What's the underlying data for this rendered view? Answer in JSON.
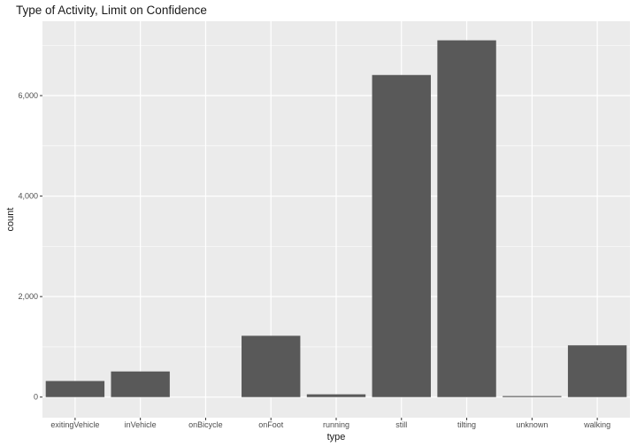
{
  "chart_data": {
    "type": "bar",
    "title": "Type of Activity, Limit on Confidence",
    "xlabel": "type",
    "ylabel": "count",
    "categories": [
      "exitingVehicle",
      "inVehicle",
      "onBicycle",
      "onFoot",
      "running",
      "still",
      "tilting",
      "unknown",
      "walking"
    ],
    "values": [
      320,
      510,
      0,
      1220,
      55,
      6410,
      7100,
      20,
      1030
    ],
    "ylim": [
      -410,
      7480
    ],
    "yticks": [
      0,
      2000,
      4000,
      6000
    ],
    "ytick_labels": [
      "0",
      "2,000",
      "4,000",
      "6,000"
    ],
    "grid": true,
    "colors": {
      "bar": "#595959",
      "panel": "#ebebeb",
      "grid": "#ffffff"
    }
  }
}
